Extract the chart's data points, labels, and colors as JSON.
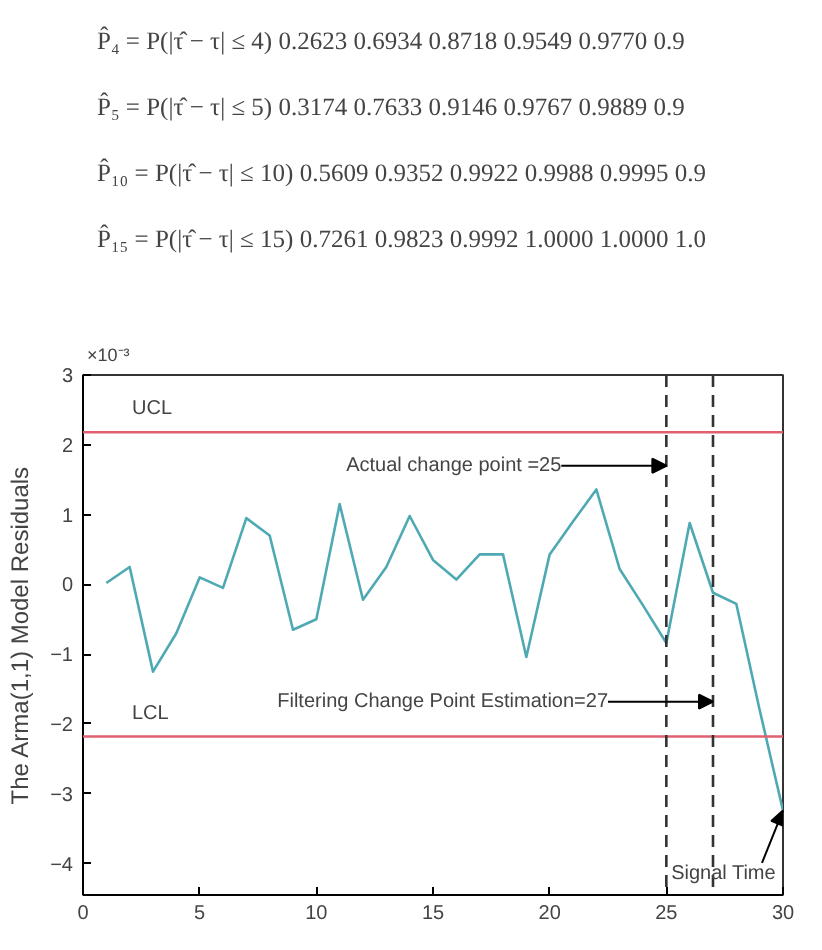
{
  "chart_data": [
    {
      "type": "other",
      "annotations": [
        "P̂₄ = P(|τ̂ − τ| ≤ 4)   0.2623  0.6934  0.8718  0.9549  0.9770  0.9",
        "P̂₅ = P(|τ̂ − τ| ≤ 5)   0.3174  0.7633  0.9146  0.9767  0.9889  0.9",
        "P̂₁₀ = P(|τ̂ − τ| ≤ 10)   0.5609  0.9352  0.9922  0.9988  0.9995  0.9",
        "P̂₁₅ = P(|τ̂ − τ| ≤ 15)   0.7261  0.9823  0.9992  1.0000  1.0000  1.0"
      ]
    },
    {
      "type": "line",
      "ylabel": "The Arma(1,1) Model Residuals",
      "x": [
        1,
        2,
        3,
        4,
        5,
        6,
        7,
        8,
        9,
        10,
        11,
        12,
        13,
        14,
        15,
        16,
        17,
        18,
        19,
        20,
        21,
        22,
        23,
        24,
        25,
        26,
        27,
        28,
        29,
        30
      ],
      "series": [
        {
          "color": "#4fa9b3",
          "values": [
            0.02,
            0.25,
            -1.25,
            -0.7,
            0.1,
            -0.05,
            0.95,
            0.7,
            -0.65,
            -0.5,
            1.15,
            -0.22,
            0.25,
            0.98,
            0.35,
            0.07,
            0.43,
            0.43,
            -1.04,
            0.43,
            0.9,
            1.36,
            0.22,
            -0.3,
            -0.84,
            0.88,
            -0.12,
            -0.28,
            -1.8,
            -3.24
          ]
        }
      ],
      "xlim": [
        0,
        30
      ],
      "xticks": [
        0,
        5,
        10,
        15,
        20,
        25,
        30
      ],
      "ylim": [
        -4.45,
        3
      ],
      "yticks": [
        -4,
        -3,
        -2,
        -1,
        0,
        1,
        2,
        3
      ],
      "grid": false,
      "ref_lines": [
        {
          "axis": "y",
          "value": 2.18,
          "label": "UCL",
          "color": "#e06070",
          "line_style": "solid"
        },
        {
          "axis": "y",
          "value": -2.18,
          "label": "LCL",
          "color": "#e06070",
          "line_style": "solid"
        },
        {
          "axis": "x",
          "value": 25,
          "label": null,
          "color": "#333333",
          "line_style": "dashed"
        },
        {
          "axis": "x",
          "value": 27,
          "label": null,
          "color": "#333333",
          "line_style": "dashed"
        }
      ],
      "annotations": [
        "×10⁻³",
        {
          "text": "Actual change point =25",
          "x": 25,
          "y": 1.7
        },
        {
          "text": "Filtering Change Point Estimation=27",
          "x": 27,
          "y": -1.68
        },
        {
          "text": "Signal Time",
          "x": 30,
          "y": -3.24
        }
      ]
    }
  ]
}
